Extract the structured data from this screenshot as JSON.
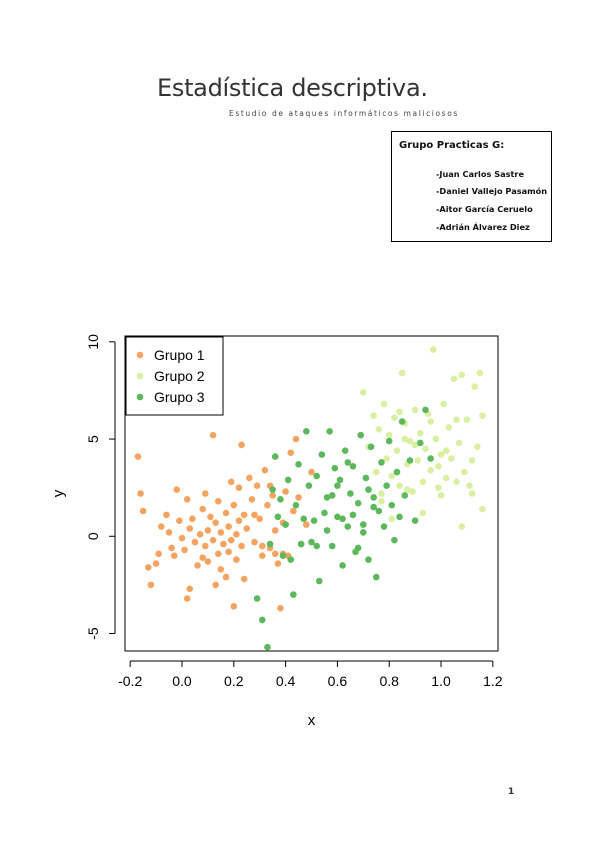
{
  "document": {
    "title": "Estadística descriptiva.",
    "subtitle": "Estudio de ataques informáticos maliciosos",
    "group_box": {
      "title": "Grupo Practicas G:",
      "members": [
        "-Juan Carlos Sastre",
        "-Daniel Vallejo Pasamón",
        "-Aitor García Ceruelo",
        "-Adrián Álvarez Diez"
      ]
    },
    "page_number": "1"
  },
  "chart_data": {
    "type": "scatter",
    "xlabel": "x",
    "ylabel": "y",
    "xlim": [
      -0.22,
      1.22
    ],
    "ylim": [
      -5.9,
      10.3
    ],
    "x_ticks": [
      "-0.2",
      "0.0",
      "0.2",
      "0.4",
      "0.6",
      "0.8",
      "1.0",
      "1.2"
    ],
    "y_ticks": [
      "-5",
      "0",
      "5",
      "10"
    ],
    "grid": false,
    "legend_position": "top-left",
    "series": [
      {
        "name": "Grupo 1",
        "color": "#F4A460",
        "points": [
          [
            -0.17,
            4.1
          ],
          [
            -0.16,
            2.2
          ],
          [
            -0.15,
            1.3
          ],
          [
            -0.13,
            -1.6
          ],
          [
            -0.12,
            -2.5
          ],
          [
            -0.1,
            -1.4
          ],
          [
            -0.09,
            -0.9
          ],
          [
            -0.08,
            0.5
          ],
          [
            -0.06,
            1.1
          ],
          [
            -0.05,
            0.2
          ],
          [
            -0.04,
            -0.6
          ],
          [
            -0.03,
            -1.0
          ],
          [
            -0.02,
            2.4
          ],
          [
            -0.01,
            0.8
          ],
          [
            0.0,
            -0.1
          ],
          [
            0.01,
            -0.7
          ],
          [
            0.02,
            -3.2
          ],
          [
            0.02,
            1.9
          ],
          [
            0.03,
            -2.7
          ],
          [
            0.03,
            0.4
          ],
          [
            0.04,
            0.9
          ],
          [
            0.05,
            -0.3
          ],
          [
            0.06,
            -1.5
          ],
          [
            0.07,
            0.1
          ],
          [
            0.08,
            1.4
          ],
          [
            0.08,
            -1.1
          ],
          [
            0.09,
            2.2
          ],
          [
            0.09,
            -0.5
          ],
          [
            0.1,
            0.3
          ],
          [
            0.1,
            -1.3
          ],
          [
            0.11,
            1.0
          ],
          [
            0.12,
            5.2
          ],
          [
            0.12,
            -0.2
          ],
          [
            0.13,
            -2.5
          ],
          [
            0.13,
            0.7
          ],
          [
            0.14,
            -0.9
          ],
          [
            0.14,
            1.8
          ],
          [
            0.15,
            0.2
          ],
          [
            0.15,
            -1.7
          ],
          [
            0.16,
            -0.4
          ],
          [
            0.17,
            1.2
          ],
          [
            0.17,
            -2.1
          ],
          [
            0.18,
            0.5
          ],
          [
            0.18,
            -0.8
          ],
          [
            0.19,
            2.8
          ],
          [
            0.19,
            -0.2
          ],
          [
            0.2,
            -3.6
          ],
          [
            0.2,
            1.6
          ],
          [
            0.21,
            0.1
          ],
          [
            0.21,
            -1.2
          ],
          [
            0.22,
            2.5
          ],
          [
            0.22,
            0.8
          ],
          [
            0.23,
            -0.5
          ],
          [
            0.23,
            4.7
          ],
          [
            0.24,
            1.1
          ],
          [
            0.24,
            -2.2
          ],
          [
            0.25,
            0.4
          ],
          [
            0.26,
            3.0
          ],
          [
            0.27,
            1.9
          ],
          [
            0.28,
            -0.3
          ],
          [
            0.29,
            2.6
          ],
          [
            0.3,
            0.9
          ],
          [
            0.31,
            -1.0
          ],
          [
            0.32,
            3.4
          ],
          [
            0.33,
            1.6
          ],
          [
            0.34,
            -0.6
          ],
          [
            0.35,
            2.1
          ],
          [
            0.36,
            0.3
          ],
          [
            0.37,
            -1.4
          ],
          [
            0.38,
            -3.7
          ],
          [
            0.39,
            0.7
          ],
          [
            0.4,
            2.3
          ],
          [
            0.41,
            -1.0
          ],
          [
            0.42,
            4.3
          ],
          [
            0.43,
            1.3
          ],
          [
            0.44,
            5.0
          ],
          [
            0.45,
            2.0
          ],
          [
            0.46,
            -0.4
          ],
          [
            0.48,
            0.6
          ],
          [
            0.5,
            3.3
          ],
          [
            0.36,
            -0.9
          ],
          [
            0.39,
            -0.9
          ],
          [
            0.31,
            -0.5
          ],
          [
            0.34,
            2.6
          ],
          [
            0.28,
            1.1
          ]
        ]
      },
      {
        "name": "Grupo 2",
        "color": "#D9F0A3",
        "points": [
          [
            0.7,
            7.4
          ],
          [
            0.72,
            4.6
          ],
          [
            0.74,
            6.2
          ],
          [
            0.75,
            3.3
          ],
          [
            0.76,
            5.5
          ],
          [
            0.77,
            2.2
          ],
          [
            0.78,
            6.8
          ],
          [
            0.79,
            4.0
          ],
          [
            0.8,
            5.2
          ],
          [
            0.81,
            3.1
          ],
          [
            0.82,
            6.1
          ],
          [
            0.83,
            4.4
          ],
          [
            0.84,
            2.6
          ],
          [
            0.85,
            8.4
          ],
          [
            0.86,
            5.8
          ],
          [
            0.87,
            3.7
          ],
          [
            0.88,
            4.9
          ],
          [
            0.89,
            2.3
          ],
          [
            0.9,
            6.5
          ],
          [
            0.91,
            3.9
          ],
          [
            0.92,
            5.3
          ],
          [
            0.93,
            2.8
          ],
          [
            0.94,
            4.5
          ],
          [
            0.95,
            6.3
          ],
          [
            0.96,
            3.4
          ],
          [
            0.97,
            9.6
          ],
          [
            0.98,
            5.0
          ],
          [
            0.99,
            2.5
          ],
          [
            1.0,
            4.2
          ],
          [
            1.01,
            6.8
          ],
          [
            1.02,
            3.0
          ],
          [
            1.03,
            5.6
          ],
          [
            1.04,
            4.0
          ],
          [
            1.05,
            8.1
          ],
          [
            1.06,
            2.8
          ],
          [
            1.07,
            4.8
          ],
          [
            1.08,
            0.5
          ],
          [
            1.09,
            3.3
          ],
          [
            1.1,
            6.0
          ],
          [
            1.11,
            2.6
          ],
          [
            1.12,
            3.9
          ],
          [
            1.13,
            7.7
          ],
          [
            1.14,
            4.6
          ],
          [
            1.15,
            8.4
          ],
          [
            1.16,
            6.2
          ],
          [
            1.16,
            1.4
          ],
          [
            1.08,
            8.3
          ],
          [
            1.0,
            2.1
          ],
          [
            0.93,
            1.2
          ],
          [
            0.87,
            2.4
          ],
          [
            0.81,
            0.9
          ],
          [
            0.77,
            1.8
          ],
          [
            0.84,
            6.4
          ],
          [
            0.9,
            4.7
          ],
          [
            1.02,
            4.4
          ],
          [
            0.96,
            5.9
          ],
          [
            1.06,
            6.0
          ],
          [
            1.12,
            2.2
          ],
          [
            0.99,
            3.6
          ],
          [
            0.86,
            5.0
          ]
        ]
      },
      {
        "name": "Grupo 3",
        "color": "#5DB85D",
        "points": [
          [
            0.29,
            -3.2
          ],
          [
            0.31,
            -4.3
          ],
          [
            0.33,
            -5.7
          ],
          [
            0.34,
            -0.4
          ],
          [
            0.35,
            2.4
          ],
          [
            0.36,
            4.1
          ],
          [
            0.37,
            1.0
          ],
          [
            0.38,
            1.9
          ],
          [
            0.39,
            -1.0
          ],
          [
            0.4,
            0.6
          ],
          [
            0.41,
            2.9
          ],
          [
            0.42,
            -1.2
          ],
          [
            0.43,
            -3.0
          ],
          [
            0.44,
            1.6
          ],
          [
            0.45,
            3.7
          ],
          [
            0.46,
            -0.4
          ],
          [
            0.47,
            0.9
          ],
          [
            0.48,
            5.4
          ],
          [
            0.49,
            2.6
          ],
          [
            0.5,
            -0.3
          ],
          [
            0.51,
            0.8
          ],
          [
            0.52,
            3.1
          ],
          [
            0.53,
            -2.3
          ],
          [
            0.54,
            4.2
          ],
          [
            0.55,
            1.2
          ],
          [
            0.56,
            2.0
          ],
          [
            0.57,
            5.4
          ],
          [
            0.58,
            -0.5
          ],
          [
            0.59,
            3.5
          ],
          [
            0.6,
            1.0
          ],
          [
            0.61,
            2.9
          ],
          [
            0.62,
            -1.5
          ],
          [
            0.63,
            4.4
          ],
          [
            0.64,
            0.5
          ],
          [
            0.65,
            2.2
          ],
          [
            0.66,
            3.6
          ],
          [
            0.67,
            -0.8
          ],
          [
            0.68,
            1.7
          ],
          [
            0.69,
            5.2
          ],
          [
            0.7,
            0.2
          ],
          [
            0.71,
            3.0
          ],
          [
            0.72,
            -1.2
          ],
          [
            0.73,
            4.6
          ],
          [
            0.74,
            2.0
          ],
          [
            0.75,
            -2.1
          ],
          [
            0.76,
            1.3
          ],
          [
            0.77,
            3.8
          ],
          [
            0.78,
            0.5
          ],
          [
            0.79,
            2.6
          ],
          [
            0.8,
            4.9
          ],
          [
            0.81,
            1.6
          ],
          [
            0.82,
            -0.2
          ],
          [
            0.83,
            3.3
          ],
          [
            0.84,
            1.0
          ],
          [
            0.85,
            5.9
          ],
          [
            0.86,
            2.1
          ],
          [
            0.88,
            3.9
          ],
          [
            0.9,
            0.8
          ],
          [
            0.92,
            4.8
          ],
          [
            0.94,
            6.5
          ],
          [
            0.96,
            4.0
          ],
          [
            0.68,
            -0.6
          ],
          [
            0.62,
            0.9
          ],
          [
            0.58,
            2.1
          ],
          [
            0.66,
            1.1
          ],
          [
            0.72,
            2.4
          ],
          [
            0.74,
            1.5
          ],
          [
            0.64,
            3.8
          ],
          [
            0.6,
            2.6
          ],
          [
            0.56,
            0.3
          ],
          [
            0.52,
            -0.5
          ],
          [
            0.7,
            0.6
          ]
        ]
      }
    ]
  }
}
